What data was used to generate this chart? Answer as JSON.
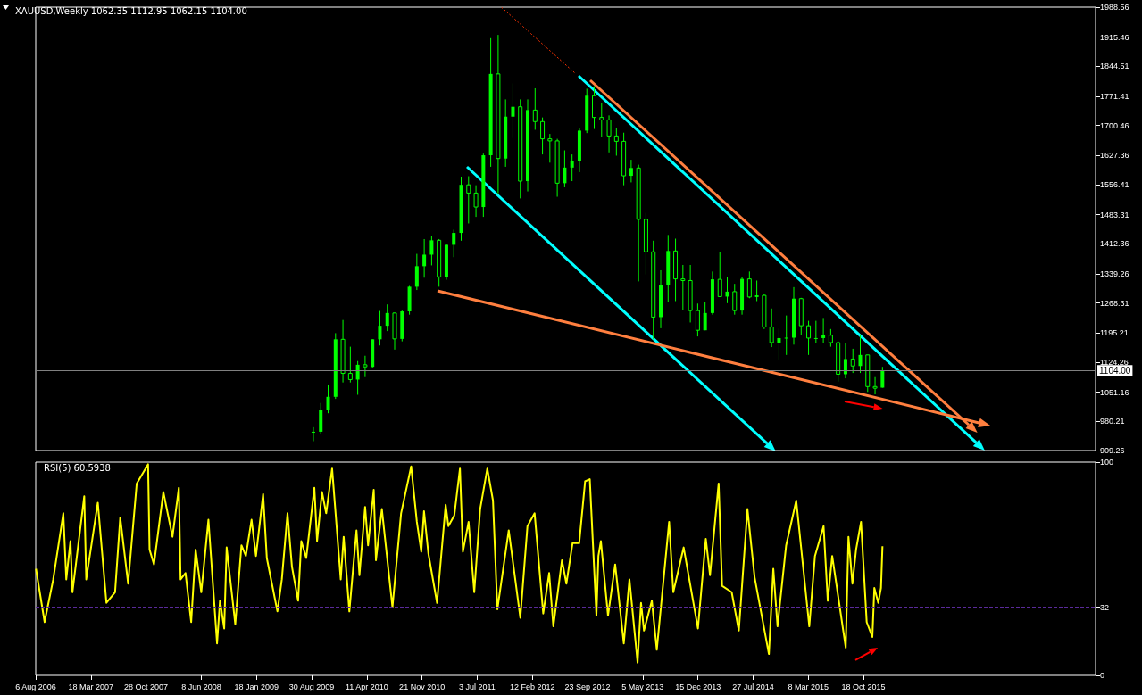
{
  "chart_data": [
    {
      "type": "candlestick",
      "title": "XAUUSD,Weekly 1062.35 1112.95 1062.15 1104.00",
      "color": "#00ff00",
      "x": [
        "2009-09-06",
        "2009-10-06",
        "2009-11-05",
        "2009-12-05",
        "2010-01-04",
        "2010-02-03",
        "2010-03-05",
        "2010-04-04",
        "2010-05-04",
        "2010-06-03",
        "2010-07-03",
        "2010-08-02",
        "2010-09-01",
        "2010-10-01",
        "2010-10-31",
        "2010-11-30",
        "2010-12-30",
        "2011-01-29",
        "2011-02-28",
        "2011-03-30",
        "2011-04-29",
        "2011-05-29",
        "2011-06-28",
        "2011-07-28",
        "2011-08-27",
        "2011-09-26",
        "2011-10-26",
        "2011-11-25",
        "2011-12-25",
        "2012-01-24",
        "2012-02-23",
        "2012-03-24",
        "2012-04-23",
        "2012-05-23",
        "2012-06-22",
        "2012-07-22",
        "2012-08-21",
        "2012-09-20",
        "2012-10-20",
        "2012-11-19",
        "2012-12-19",
        "2013-01-18",
        "2013-02-17",
        "2013-03-19",
        "2013-04-18",
        "2013-05-18",
        "2013-06-17",
        "2013-07-17",
        "2013-08-16",
        "2013-09-15",
        "2013-10-15",
        "2013-11-14",
        "2013-12-14",
        "2014-01-13",
        "2014-02-12",
        "2014-03-14",
        "2014-04-13",
        "2014-05-13",
        "2014-06-12",
        "2014-07-12",
        "2014-08-11",
        "2014-09-10",
        "2014-10-10",
        "2014-11-09",
        "2014-12-09",
        "2015-01-08",
        "2015-02-07",
        "2015-03-09",
        "2015-04-08",
        "2015-05-08",
        "2015-06-07",
        "2015-07-07",
        "2015-08-06",
        "2015-09-05",
        "2015-10-05",
        "2015-11-04",
        "2015-12-04",
        "2016-01-03"
      ],
      "ohlc": [
        [
          953,
          966,
          932,
          955
        ],
        [
          955,
          1025,
          950,
          1008
        ],
        [
          1008,
          1070,
          1000,
          1040
        ],
        [
          1040,
          1195,
          1035,
          1180
        ],
        [
          1180,
          1227,
          1075,
          1097
        ],
        [
          1097,
          1162,
          1075,
          1082
        ],
        [
          1082,
          1127,
          1045,
          1118
        ],
        [
          1118,
          1140,
          1088,
          1113
        ],
        [
          1113,
          1180,
          1110,
          1180
        ],
        [
          1180,
          1249,
          1165,
          1213
        ],
        [
          1213,
          1265,
          1200,
          1244
        ],
        [
          1244,
          1245,
          1155,
          1181
        ],
        [
          1181,
          1250,
          1175,
          1248
        ],
        [
          1248,
          1310,
          1240,
          1308
        ],
        [
          1308,
          1388,
          1300,
          1358
        ],
        [
          1358,
          1424,
          1330,
          1386
        ],
        [
          1386,
          1431,
          1360,
          1421
        ],
        [
          1421,
          1424,
          1308,
          1332
        ],
        [
          1332,
          1411,
          1325,
          1410
        ],
        [
          1410,
          1447,
          1380,
          1439
        ],
        [
          1439,
          1576,
          1420,
          1556
        ],
        [
          1556,
          1577,
          1462,
          1536
        ],
        [
          1536,
          1555,
          1478,
          1502
        ],
        [
          1502,
          1632,
          1478,
          1628
        ],
        [
          1628,
          1913,
          1600,
          1826
        ],
        [
          1826,
          1921,
          1535,
          1620
        ],
        [
          1620,
          1764,
          1600,
          1722
        ],
        [
          1722,
          1803,
          1670,
          1746
        ],
        [
          1746,
          1764,
          1523,
          1565
        ],
        [
          1565,
          1764,
          1540,
          1738
        ],
        [
          1738,
          1791,
          1690,
          1710
        ],
        [
          1710,
          1720,
          1630,
          1668
        ],
        [
          1668,
          1680,
          1610,
          1663
        ],
        [
          1663,
          1668,
          1527,
          1560
        ],
        [
          1560,
          1640,
          1550,
          1598
        ],
        [
          1598,
          1630,
          1565,
          1615
        ],
        [
          1615,
          1693,
          1587,
          1688
        ],
        [
          1688,
          1790,
          1682,
          1773
        ],
        [
          1773,
          1796,
          1692,
          1720
        ],
        [
          1720,
          1755,
          1672,
          1714
        ],
        [
          1714,
          1725,
          1635,
          1675
        ],
        [
          1675,
          1695,
          1627,
          1662
        ],
        [
          1662,
          1683,
          1555,
          1578
        ],
        [
          1578,
          1617,
          1562,
          1597
        ],
        [
          1597,
          1605,
          1321,
          1472
        ],
        [
          1472,
          1488,
          1338,
          1393
        ],
        [
          1393,
          1420,
          1180,
          1234
        ],
        [
          1234,
          1348,
          1207,
          1313
        ],
        [
          1313,
          1434,
          1270,
          1395
        ],
        [
          1395,
          1425,
          1273,
          1327
        ],
        [
          1327,
          1361,
          1251,
          1323
        ],
        [
          1323,
          1361,
          1221,
          1250
        ],
        [
          1250,
          1267,
          1187,
          1202
        ],
        [
          1202,
          1271,
          1202,
          1244
        ],
        [
          1244,
          1345,
          1240,
          1326
        ],
        [
          1326,
          1392,
          1283,
          1284
        ],
        [
          1284,
          1331,
          1268,
          1296
        ],
        [
          1296,
          1315,
          1240,
          1250
        ],
        [
          1250,
          1332,
          1240,
          1327
        ],
        [
          1327,
          1345,
          1280,
          1283
        ],
        [
          1283,
          1323,
          1273,
          1287
        ],
        [
          1287,
          1290,
          1205,
          1210
        ],
        [
          1210,
          1255,
          1161,
          1172
        ],
        [
          1172,
          1206,
          1131,
          1183
        ],
        [
          1183,
          1238,
          1142,
          1184
        ],
        [
          1184,
          1307,
          1167,
          1279
        ],
        [
          1279,
          1281,
          1191,
          1213
        ],
        [
          1213,
          1225,
          1142,
          1183
        ],
        [
          1183,
          1225,
          1170,
          1183
        ],
        [
          1183,
          1232,
          1170,
          1190
        ],
        [
          1190,
          1205,
          1162,
          1172
        ],
        [
          1172,
          1175,
          1077,
          1095
        ],
        [
          1095,
          1170,
          1085,
          1132
        ],
        [
          1132,
          1157,
          1098,
          1115
        ],
        [
          1115,
          1191,
          1098,
          1142
        ],
        [
          1142,
          1142,
          1052,
          1065
        ],
        [
          1065,
          1088,
          1046,
          1061
        ],
        [
          1062.35,
          1112.95,
          1062.15,
          1104.0
        ]
      ],
      "series": [
        {
          "type": "line",
          "color": "#ff3300",
          "line_style": "dotted",
          "x": [
            "2012-08-01",
            "2011-10-10"
          ],
          "values": [
            1829,
            1988
          ]
        }
      ],
      "xlim": [
        "2006-08-06",
        "2018-05-17"
      ],
      "ylim": [
        909.26,
        1988.56
      ],
      "yticks": [
        909.26,
        980.21,
        1051.16,
        1124.26,
        1195.21,
        1268.31,
        1339.26,
        1412.36,
        1483.31,
        1556.41,
        1627.36,
        1700.46,
        1771.41,
        1844.51,
        1915.46,
        1988.56
      ],
      "ref_lines": [
        {
          "axis": "y",
          "value": 1104,
          "label": "1104.00",
          "color": "#808080"
        }
      ],
      "tick_labels": "y"
    },
    {
      "type": "line",
      "title": "RSI(5) 60.5938",
      "color": "#ffff00",
      "marker": "none",
      "x": [
        "2006-08-07",
        "2006-09-11",
        "2006-10-16",
        "2006-11-26",
        "2006-12-08",
        "2006-12-25",
        "2007-01-02",
        "2007-02-19",
        "2007-02-27",
        "2007-04-15",
        "2007-05-20",
        "2007-06-24",
        "2007-07-15",
        "2007-08-16",
        "2007-09-20",
        "2007-11-05",
        "2007-11-11",
        "2007-11-29",
        "2008-01-06",
        "2008-02-12",
        "2008-03-09",
        "2008-03-16",
        "2008-04-05",
        "2008-04-28",
        "2008-05-16",
        "2008-06-08",
        "2008-07-07",
        "2008-08-11",
        "2008-08-23",
        "2008-09-09",
        "2008-09-19",
        "2008-10-24",
        "2008-11-18",
        "2008-12-06",
        "2008-12-29",
        "2009-01-16",
        "2009-02-14",
        "2009-03-01",
        "2009-04-13",
        "2009-05-01",
        "2009-05-24",
        "2009-06-11",
        "2009-07-06",
        "2009-07-19",
        "2009-08-08",
        "2009-09-10",
        "2009-09-21",
        "2009-10-11",
        "2009-10-28",
        "2009-11-21",
        "2009-12-26",
        "2010-01-07",
        "2010-01-30",
        "2010-02-28",
        "2010-03-12",
        "2010-04-04",
        "2010-04-16",
        "2010-05-09",
        "2010-05-18",
        "2010-06-11",
        "2010-07-24",
        "2010-08-28",
        "2010-10-08",
        "2010-10-31",
        "2010-11-18",
        "2010-11-29",
        "2010-12-17",
        "2011-01-21",
        "2011-02-25",
        "2011-03-08",
        "2011-04-01",
        "2011-04-24",
        "2011-05-06",
        "2011-05-29",
        "2011-06-21",
        "2011-07-15",
        "2011-08-13",
        "2011-09-05",
        "2011-09-23",
        "2011-11-08",
        "2011-12-25",
        "2012-01-23",
        "2012-02-21",
        "2012-03-27",
        "2012-04-20",
        "2012-05-07",
        "2012-06-11",
        "2012-06-29",
        "2012-07-24",
        "2012-08-20",
        "2012-09-13",
        "2012-10-02",
        "2012-10-29",
        "2012-11-06",
        "2012-11-16",
        "2012-12-15",
        "2013-01-13",
        "2013-02-17",
        "2013-03-12",
        "2013-04-14",
        "2013-04-28",
        "2013-05-10",
        "2013-06-11",
        "2013-07-01",
        "2013-08-20",
        "2013-09-06",
        "2013-10-18",
        "2013-12-15",
        "2014-01-16",
        "2014-02-02",
        "2014-03-09",
        "2014-03-23",
        "2014-05-01",
        "2014-05-30",
        "2014-07-04",
        "2014-08-02",
        "2014-09-29",
        "2014-10-17",
        "2014-11-03",
        "2014-12-08",
        "2015-01-18",
        "2015-03-12",
        "2015-04-04",
        "2015-05-09",
        "2015-05-26",
        "2015-06-13",
        "2015-08-07",
        "2015-08-18",
        "2015-09-03",
        "2015-09-18",
        "2015-10-08",
        "2015-10-31",
        "2015-11-23",
        "2015-12-01",
        "2015-12-17",
        "2015-12-28",
        "2016-01-03"
      ],
      "values": [
        50,
        25,
        45,
        76,
        45,
        63,
        39,
        84,
        45,
        81,
        34,
        39,
        74,
        43,
        90,
        99,
        59,
        52,
        86,
        65,
        88,
        45,
        48,
        25,
        59,
        39,
        73,
        15,
        35,
        22,
        60,
        24,
        61,
        56,
        73,
        56,
        85,
        55,
        30,
        45,
        76,
        51,
        35,
        63,
        55,
        88,
        63,
        86,
        76,
        97,
        45,
        65,
        30,
        68,
        47,
        79,
        61,
        87,
        54,
        78,
        32,
        76,
        98,
        72,
        58,
        77,
        57,
        34,
        80,
        70,
        75,
        97,
        58,
        72,
        39,
        78,
        97,
        82,
        31,
        68,
        27,
        70,
        76,
        29,
        48,
        23,
        54,
        43,
        62,
        62,
        91,
        92,
        28,
        56,
        63,
        28,
        52,
        15,
        45,
        6,
        34,
        21,
        35,
        12,
        72,
        39,
        60,
        22,
        64,
        47,
        90,
        42,
        39,
        21,
        78,
        46,
        10,
        50,
        23,
        61,
        82,
        23,
        56,
        70,
        35,
        56,
        13,
        65,
        43,
        59,
        72,
        25,
        18,
        41,
        34,
        41,
        60.5938
      ],
      "xlim": [
        "2006-08-06",
        "2018-05-17"
      ],
      "xticks": [
        {
          "value": "2006-08-06",
          "label": "6 Aug 2006"
        },
        {
          "value": "2007-03-18",
          "label": "18 Mar 2007"
        },
        {
          "value": "2007-10-28",
          "label": "28 Oct 2007"
        },
        {
          "value": "2008-06-08",
          "label": "8 Jun 2008"
        },
        {
          "value": "2009-01-18",
          "label": "18 Jan 2009"
        },
        {
          "value": "2009-08-30",
          "label": "30 Aug 2009"
        },
        {
          "value": "2010-04-11",
          "label": "11 Apr 2010"
        },
        {
          "value": "2010-11-21",
          "label": "21 Nov 2010"
        },
        {
          "value": "2011-07-03",
          "label": "3 Jul 2011"
        },
        {
          "value": "2012-02-12",
          "label": "12 Feb 2012"
        },
        {
          "value": "2012-09-23",
          "label": "23 Sep 2012"
        },
        {
          "value": "2013-05-05",
          "label": "5 May 2013"
        },
        {
          "value": "2013-12-15",
          "label": "15 Dec 2013"
        },
        {
          "value": "2014-07-27",
          "label": "27 Jul 2014"
        },
        {
          "value": "2015-03-08",
          "label": "8 Mar 2015"
        },
        {
          "value": "2015-10-18",
          "label": "18 Oct 2015"
        }
      ],
      "ylim": [
        0,
        100
      ],
      "yticks": [
        0,
        32,
        100
      ],
      "ref_lines": [
        {
          "axis": "y",
          "value": 32,
          "color": "#5a2a9a",
          "line_style": "dashed"
        }
      ]
    }
  ]
}
